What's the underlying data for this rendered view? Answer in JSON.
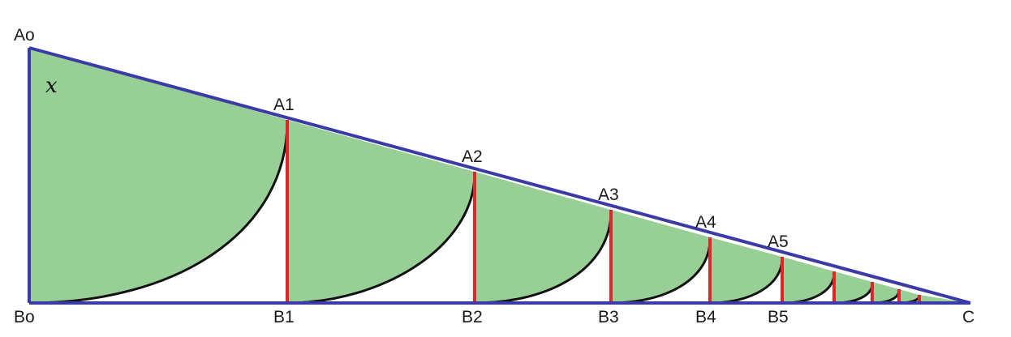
{
  "figure": {
    "variable_label": "x",
    "top_labels": [
      "Ao",
      "A1",
      "A2",
      "A3",
      "A4",
      "A5"
    ],
    "bottom_labels": [
      "Bo",
      "B1",
      "B2",
      "B3",
      "B4",
      "B5"
    ],
    "apex_label": "C",
    "colors": {
      "fill": "#97cf96",
      "triangle_edge": "#3b3ba8",
      "vertical_segment": "#e0262b",
      "arc": "#111111"
    }
  }
}
